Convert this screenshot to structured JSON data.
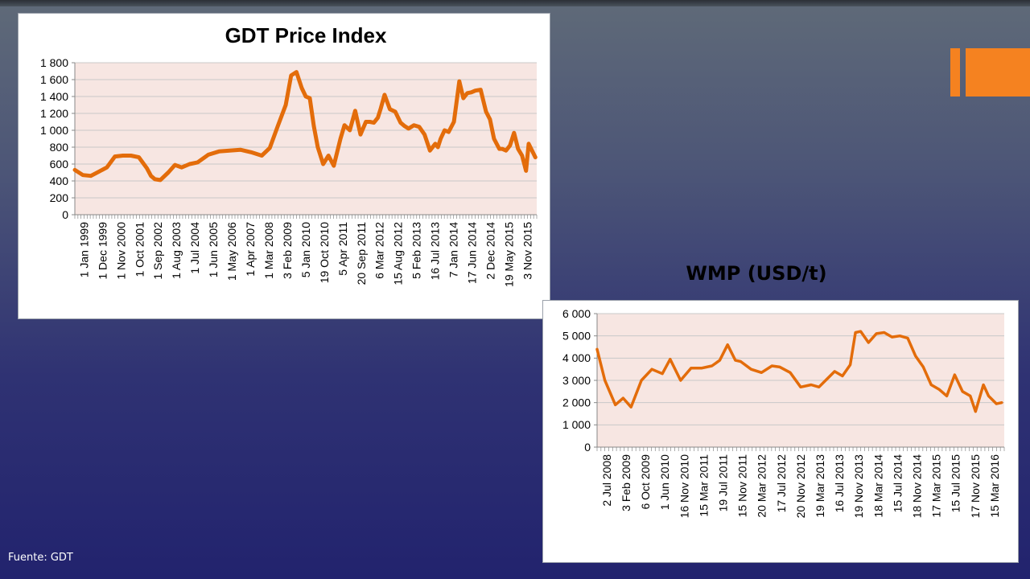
{
  "colors": {
    "line": "#e36c0a",
    "plot_bg": "#f7e6e2",
    "grid": "#c8c8c8",
    "accent": "#f58220"
  },
  "footer": {
    "source": "Fuente: GDT"
  },
  "chart_data": [
    {
      "type": "line",
      "title": "GDT Price Index",
      "xlabel": "",
      "ylabel": "",
      "ylim": [
        0,
        1800
      ],
      "yticks": [
        0,
        200,
        400,
        600,
        800,
        1000,
        1200,
        1400,
        1600,
        1800
      ],
      "ytick_labels": [
        "0",
        "200",
        "400",
        "600",
        "800",
        "1 000",
        "1 200",
        "1 400",
        "1 600",
        "1 800"
      ],
      "grid": true,
      "legend": "none",
      "x_tick_labels": [
        "1 Jan 1999",
        "1 Dec 1999",
        "1 Nov 2000",
        "1 Oct 2001",
        "1 Sep 2002",
        "1 Aug 2003",
        "1 Jul 2004",
        "1 Jun 2005",
        "1 May 2006",
        "1 Apr 2007",
        "1 Mar 2008",
        "3 Feb 2009",
        "5 Jan 2010",
        "19 Oct 2010",
        "5 Apr 2011",
        "20 Sep 2011",
        "6 Mar 2012",
        "15 Aug 2012",
        "5 Feb 2013",
        "16 Jul 2013",
        "7 Jan 2014",
        "17 Jun 2014",
        "2 Dec 2014",
        "19 May 2015",
        "3 Nov 2015"
      ],
      "series": [
        {
          "x": [
            1999.0,
            1999.3,
            1999.6,
            1999.9,
            2000.2,
            2000.5,
            2000.8,
            2001.1,
            2001.4,
            2001.7,
            2001.85,
            2002.0,
            2002.2,
            2002.5,
            2002.75,
            2003.0,
            2003.3,
            2003.6,
            2004.0,
            2004.4,
            2004.8,
            2005.2,
            2005.6,
            2006.0,
            2006.3,
            2006.6,
            2006.9,
            2007.1,
            2007.3,
            2007.5,
            2007.65,
            2007.8,
            2007.95,
            2008.1,
            2008.3,
            2008.5,
            2008.7,
            2008.95,
            2009.1,
            2009.3,
            2009.5,
            2009.7,
            2009.9,
            2010.05,
            2010.2,
            2010.35,
            2010.45,
            2010.6,
            2010.8,
            2011.0,
            2011.2,
            2011.35,
            2011.5,
            2011.7,
            2011.9,
            2012.1,
            2012.3,
            2012.5,
            2012.6,
            2012.7,
            2012.85,
            2013.0,
            2013.2,
            2013.4,
            2013.55,
            2013.7,
            2013.85,
            2014.0,
            2014.2,
            2014.4,
            2014.55,
            2014.7,
            2014.9,
            2015.0,
            2015.15,
            2015.3,
            2015.45,
            2015.6,
            2015.75,
            2015.9,
            2016.0,
            2016.25
          ],
          "values": [
            530,
            470,
            460,
            510,
            560,
            690,
            700,
            700,
            680,
            550,
            460,
            420,
            410,
            500,
            590,
            560,
            600,
            620,
            710,
            750,
            760,
            770,
            740,
            700,
            790,
            1050,
            1300,
            1650,
            1690,
            1500,
            1400,
            1380,
            1050,
            800,
            600,
            700,
            580,
            900,
            1060,
            1000,
            1230,
            950,
            1100,
            1100,
            1090,
            1150,
            1250,
            1420,
            1250,
            1220,
            1090,
            1050,
            1020,
            1060,
            1040,
            950,
            760,
            840,
            800,
            900,
            1000,
            980,
            1100,
            1580,
            1380,
            1440,
            1450,
            1470,
            1480,
            1220,
            1130,
            900,
            780,
            780,
            760,
            820,
            970,
            780,
            700,
            520,
            840,
            680
          ],
          "stroke_width": 5
        }
      ]
    },
    {
      "type": "line",
      "title": "WMP (USD/t)",
      "xlabel": "",
      "ylabel": "",
      "ylim": [
        0,
        6000
      ],
      "yticks": [
        0,
        1000,
        2000,
        3000,
        4000,
        5000,
        6000
      ],
      "ytick_labels": [
        "0",
        "1 000",
        "2 000",
        "3 000",
        "4 000",
        "5 000",
        "6 000"
      ],
      "grid": true,
      "legend": "none",
      "x_tick_labels": [
        "2 Jul 2008",
        "3 Feb 2009",
        "6 Oct 2009",
        "1 Jun 2010",
        "16 Nov 2010",
        "15 Mar 2011",
        "19 Jul 2011",
        "15 Nov 2011",
        "20 Mar 2012",
        "17 Jul 2012",
        "20 Nov 2012",
        "19 Mar 2013",
        "16 Jul 2013",
        "19 Nov 2013",
        "18 Mar 2014",
        "15 Jul 2014",
        "18 Nov 2014",
        "17 Mar 2015",
        "15 Jul 2015",
        "17 Nov 2015",
        "15 Mar 2016"
      ],
      "series": [
        {
          "x": [
            2008.5,
            2008.65,
            2008.85,
            2009.0,
            2009.15,
            2009.35,
            2009.55,
            2009.75,
            2009.9,
            2010.1,
            2010.3,
            2010.5,
            2010.7,
            2010.85,
            2011.0,
            2011.15,
            2011.25,
            2011.45,
            2011.65,
            2011.85,
            2012.0,
            2012.2,
            2012.4,
            2012.6,
            2012.75,
            2012.9,
            2013.05,
            2013.2,
            2013.35,
            2013.45,
            2013.55,
            2013.7,
            2013.85,
            2014.0,
            2014.15,
            2014.3,
            2014.45,
            2014.6,
            2014.75,
            2014.9,
            2015.05,
            2015.2,
            2015.35,
            2015.5,
            2015.65,
            2015.75,
            2015.9,
            2016.0,
            2016.15,
            2016.25
          ],
          "values": [
            4400,
            3000,
            1900,
            2200,
            1800,
            3000,
            3500,
            3300,
            3950,
            3000,
            3550,
            3550,
            3650,
            3900,
            4600,
            3900,
            3850,
            3500,
            3350,
            3650,
            3600,
            3350,
            2700,
            2800,
            2700,
            3050,
            3400,
            3200,
            3700,
            5150,
            5200,
            4700,
            5100,
            5150,
            4950,
            5000,
            4900,
            4100,
            3600,
            2800,
            2600,
            2300,
            3250,
            2500,
            2300,
            1600,
            2800,
            2300,
            1950,
            2000
          ],
          "stroke_width": 3.5
        }
      ]
    }
  ]
}
